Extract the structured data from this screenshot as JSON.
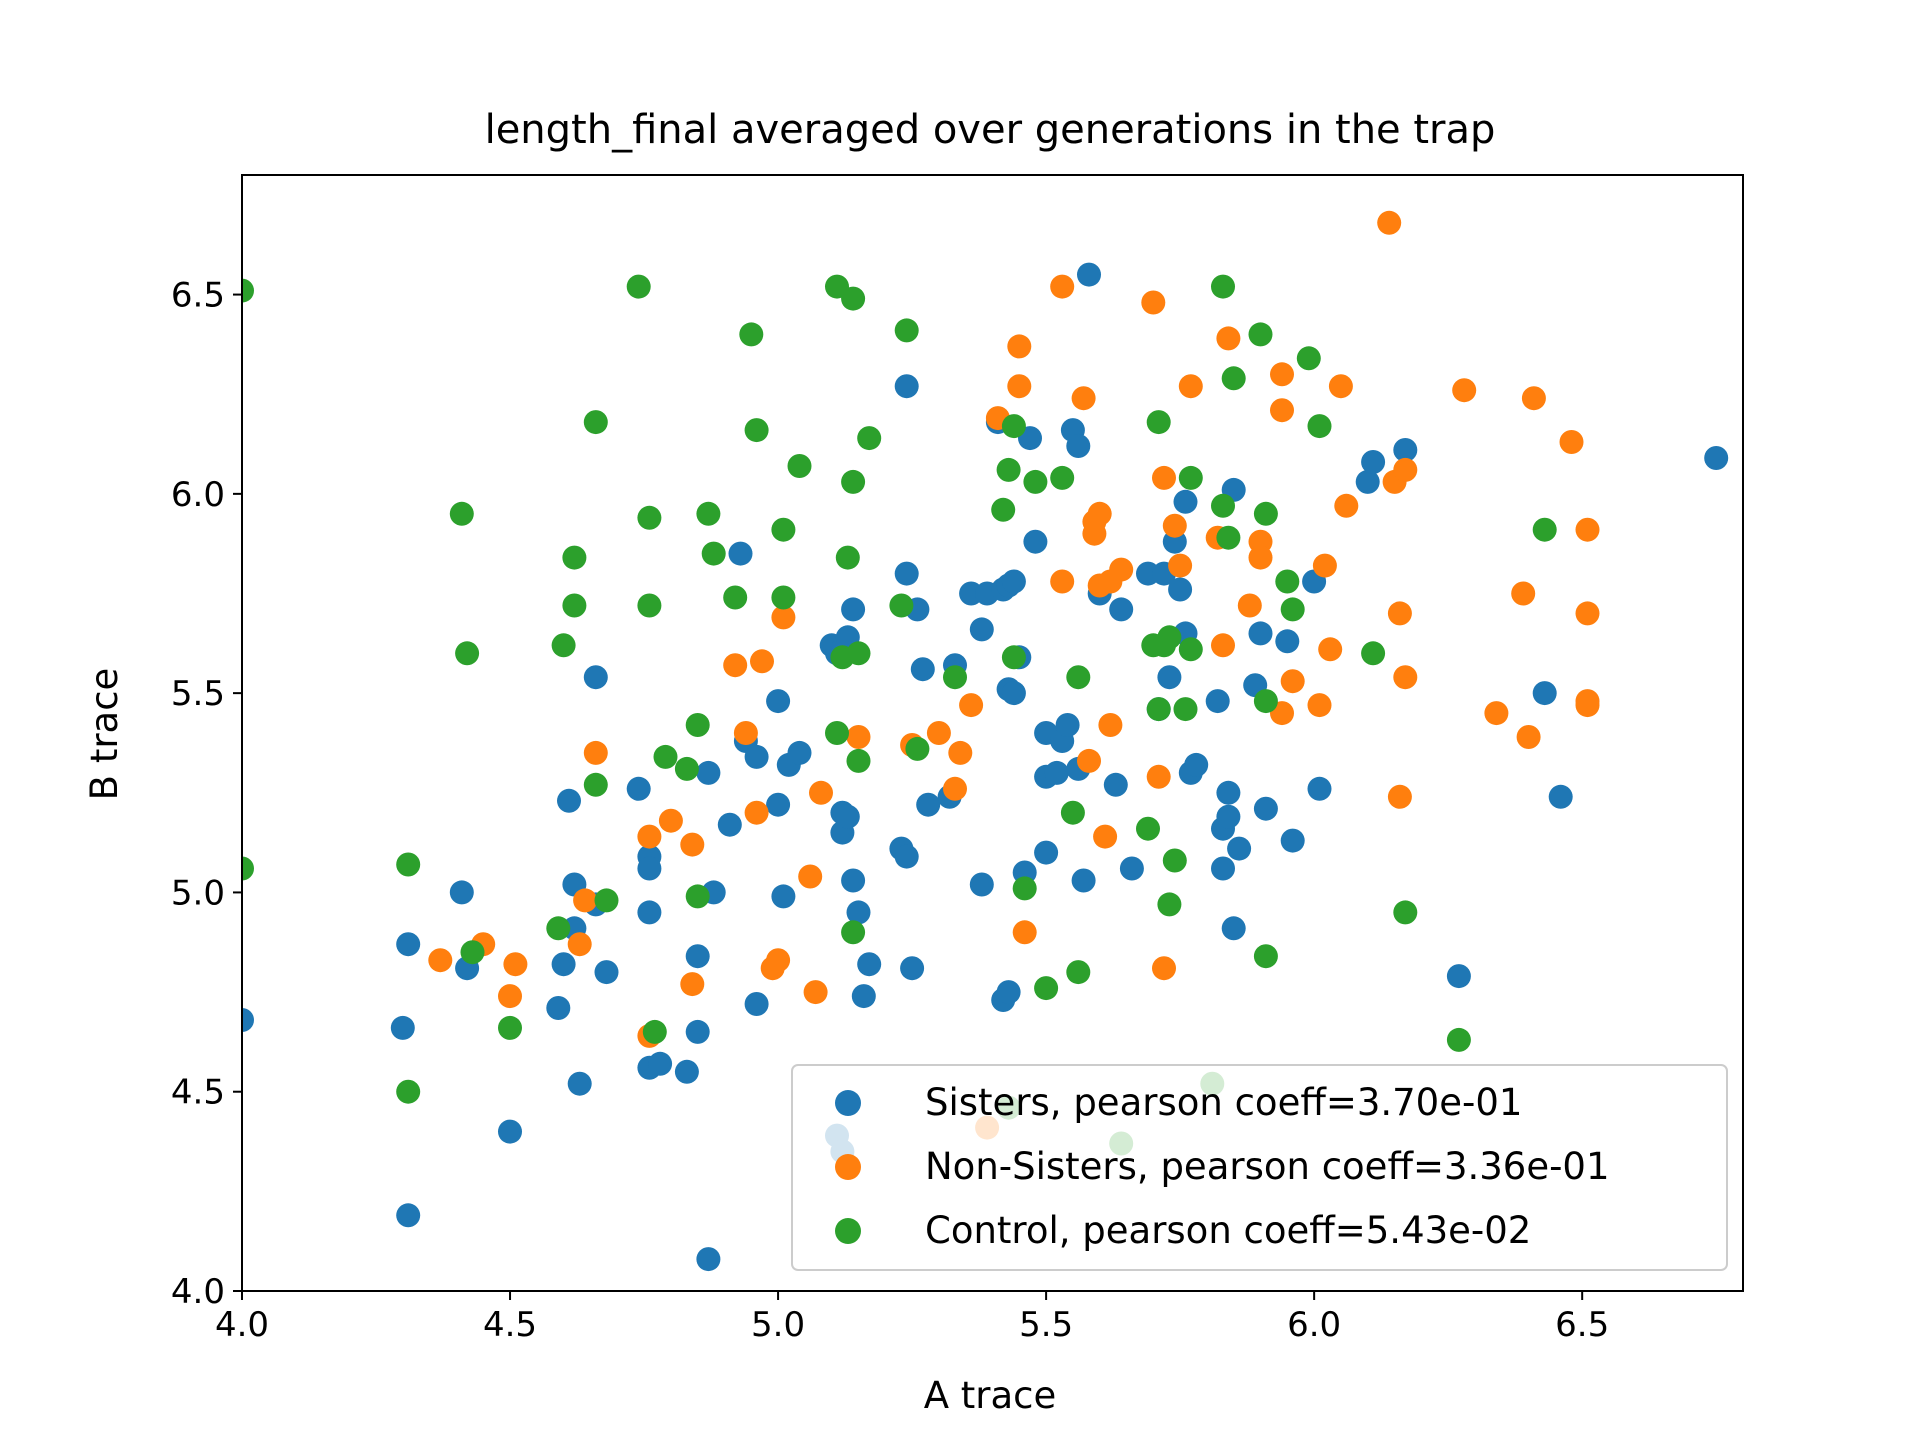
{
  "chart_data": {
    "type": "scatter",
    "title": "length_final averaged over generations in the trap",
    "xlabel": "A trace",
    "ylabel": "B trace",
    "xlim": [
      4.0,
      6.8
    ],
    "ylim": [
      4.0,
      6.8
    ],
    "xticks": [
      "4.0",
      "4.5",
      "5.0",
      "5.5",
      "6.0",
      "6.5"
    ],
    "yticks": [
      "4.0",
      "4.5",
      "5.0",
      "5.5",
      "6.0",
      "6.5"
    ],
    "grid": false,
    "legend_position": "lower-right",
    "series": [
      {
        "name": "Sisters, pearson coeff=3.70e-01",
        "color": "#1f77b4",
        "points": [
          [
            4.0,
            4.68
          ],
          [
            4.3,
            4.66
          ],
          [
            4.31,
            4.87
          ],
          [
            4.31,
            4.19
          ],
          [
            4.41,
            5.0
          ],
          [
            4.42,
            4.81
          ],
          [
            4.5,
            4.4
          ],
          [
            4.59,
            4.71
          ],
          [
            4.6,
            4.82
          ],
          [
            4.61,
            5.23
          ],
          [
            4.62,
            5.02
          ],
          [
            4.62,
            4.91
          ],
          [
            4.63,
            4.52
          ],
          [
            4.66,
            5.54
          ],
          [
            4.66,
            4.97
          ],
          [
            4.68,
            4.8
          ],
          [
            4.74,
            5.26
          ],
          [
            4.76,
            5.09
          ],
          [
            4.76,
            5.06
          ],
          [
            4.76,
            4.95
          ],
          [
            4.76,
            4.56
          ],
          [
            4.78,
            4.57
          ],
          [
            4.83,
            4.55
          ],
          [
            4.85,
            4.84
          ],
          [
            4.85,
            4.65
          ],
          [
            4.87,
            5.3
          ],
          [
            4.87,
            4.08
          ],
          [
            4.88,
            5.0
          ],
          [
            4.91,
            5.17
          ],
          [
            4.93,
            5.85
          ],
          [
            4.94,
            5.38
          ],
          [
            4.96,
            5.34
          ],
          [
            4.96,
            4.72
          ],
          [
            5.0,
            5.48
          ],
          [
            5.0,
            5.22
          ],
          [
            5.01,
            4.99
          ],
          [
            5.02,
            5.32
          ],
          [
            5.04,
            5.35
          ],
          [
            5.1,
            5.62
          ],
          [
            5.11,
            5.6
          ],
          [
            5.12,
            5.2
          ],
          [
            5.12,
            5.15
          ],
          [
            5.13,
            5.64
          ],
          [
            5.13,
            5.19
          ],
          [
            5.14,
            5.71
          ],
          [
            5.14,
            5.03
          ],
          [
            5.15,
            4.95
          ],
          [
            5.16,
            4.74
          ],
          [
            5.17,
            4.82
          ],
          [
            5.23,
            5.11
          ],
          [
            5.24,
            6.27
          ],
          [
            5.24,
            5.8
          ],
          [
            5.24,
            5.09
          ],
          [
            5.25,
            4.81
          ],
          [
            5.26,
            5.71
          ],
          [
            5.27,
            5.56
          ],
          [
            5.28,
            5.22
          ],
          [
            5.32,
            5.24
          ],
          [
            5.33,
            5.57
          ],
          [
            5.36,
            5.75
          ],
          [
            5.38,
            5.66
          ],
          [
            5.38,
            5.02
          ],
          [
            5.39,
            5.75
          ],
          [
            5.41,
            6.18
          ],
          [
            5.42,
            5.76
          ],
          [
            5.42,
            4.73
          ],
          [
            5.43,
            5.77
          ],
          [
            5.43,
            5.51
          ],
          [
            5.43,
            4.75
          ],
          [
            5.44,
            5.78
          ],
          [
            5.44,
            5.5
          ],
          [
            5.45,
            5.59
          ],
          [
            5.46,
            5.05
          ],
          [
            5.47,
            6.14
          ],
          [
            5.48,
            5.88
          ],
          [
            5.5,
            5.4
          ],
          [
            5.5,
            5.29
          ],
          [
            5.5,
            5.1
          ],
          [
            5.52,
            5.3
          ],
          [
            5.53,
            5.38
          ],
          [
            5.54,
            5.42
          ],
          [
            5.55,
            6.16
          ],
          [
            5.56,
            6.12
          ],
          [
            5.56,
            5.31
          ],
          [
            5.57,
            5.03
          ],
          [
            5.58,
            6.55
          ],
          [
            5.6,
            5.75
          ],
          [
            5.63,
            5.27
          ],
          [
            5.64,
            5.71
          ],
          [
            5.66,
            5.06
          ],
          [
            5.69,
            5.8
          ],
          [
            5.71,
            5.46
          ],
          [
            5.72,
            5.8
          ],
          [
            5.73,
            5.54
          ],
          [
            5.74,
            5.88
          ],
          [
            5.75,
            5.76
          ],
          [
            5.76,
            5.65
          ],
          [
            5.76,
            5.98
          ],
          [
            5.77,
            5.3
          ],
          [
            5.78,
            5.32
          ],
          [
            5.82,
            5.48
          ],
          [
            5.83,
            5.16
          ],
          [
            5.83,
            5.06
          ],
          [
            5.84,
            5.25
          ],
          [
            5.84,
            5.19
          ],
          [
            5.85,
            6.01
          ],
          [
            5.85,
            4.91
          ],
          [
            5.86,
            5.11
          ],
          [
            5.89,
            5.52
          ],
          [
            5.9,
            5.65
          ],
          [
            5.91,
            5.21
          ],
          [
            5.95,
            5.63
          ],
          [
            5.96,
            5.13
          ],
          [
            6.0,
            5.78
          ],
          [
            6.01,
            5.26
          ],
          [
            6.1,
            6.03
          ],
          [
            6.11,
            6.08
          ],
          [
            6.17,
            6.11
          ],
          [
            6.27,
            4.79
          ],
          [
            6.43,
            5.5
          ],
          [
            6.46,
            5.24
          ],
          [
            6.75,
            6.09
          ],
          [
            5.11,
            4.39
          ],
          [
            5.12,
            4.35
          ]
        ]
      },
      {
        "name": "Non-Sisters, pearson coeff=3.36e-01",
        "color": "#ff7f0e",
        "points": [
          [
            4.37,
            4.83
          ],
          [
            4.45,
            4.87
          ],
          [
            4.5,
            4.74
          ],
          [
            4.51,
            4.82
          ],
          [
            4.63,
            4.87
          ],
          [
            4.64,
            4.98
          ],
          [
            4.66,
            5.35
          ],
          [
            4.76,
            5.14
          ],
          [
            4.76,
            4.64
          ],
          [
            4.8,
            5.18
          ],
          [
            4.84,
            5.12
          ],
          [
            4.84,
            4.77
          ],
          [
            4.92,
            5.57
          ],
          [
            4.94,
            5.4
          ],
          [
            4.96,
            5.2
          ],
          [
            4.97,
            5.58
          ],
          [
            4.99,
            4.81
          ],
          [
            5.0,
            4.83
          ],
          [
            5.01,
            5.69
          ],
          [
            5.06,
            5.04
          ],
          [
            5.07,
            4.75
          ],
          [
            5.08,
            5.25
          ],
          [
            5.15,
            5.39
          ],
          [
            5.25,
            5.37
          ],
          [
            5.3,
            5.4
          ],
          [
            5.33,
            5.26
          ],
          [
            5.34,
            5.35
          ],
          [
            5.36,
            5.47
          ],
          [
            5.39,
            4.41
          ],
          [
            5.41,
            6.19
          ],
          [
            5.45,
            6.37
          ],
          [
            5.45,
            6.27
          ],
          [
            5.46,
            4.9
          ],
          [
            5.53,
            6.52
          ],
          [
            5.53,
            5.78
          ],
          [
            5.57,
            6.24
          ],
          [
            5.58,
            5.33
          ],
          [
            5.59,
            5.93
          ],
          [
            5.59,
            5.9
          ],
          [
            5.6,
            5.95
          ],
          [
            5.6,
            5.77
          ],
          [
            5.61,
            5.14
          ],
          [
            5.62,
            5.78
          ],
          [
            5.62,
            5.42
          ],
          [
            5.64,
            5.81
          ],
          [
            5.7,
            6.48
          ],
          [
            5.71,
            5.29
          ],
          [
            5.72,
            6.04
          ],
          [
            5.72,
            4.81
          ],
          [
            5.74,
            5.92
          ],
          [
            5.75,
            5.82
          ],
          [
            5.77,
            6.27
          ],
          [
            5.82,
            5.89
          ],
          [
            5.83,
            5.62
          ],
          [
            5.84,
            6.39
          ],
          [
            5.88,
            5.72
          ],
          [
            5.9,
            5.88
          ],
          [
            5.9,
            5.84
          ],
          [
            5.94,
            6.3
          ],
          [
            5.94,
            6.21
          ],
          [
            5.94,
            5.45
          ],
          [
            5.96,
            5.53
          ],
          [
            6.01,
            5.47
          ],
          [
            6.02,
            5.82
          ],
          [
            6.03,
            5.61
          ],
          [
            6.05,
            6.27
          ],
          [
            6.06,
            5.97
          ],
          [
            6.14,
            6.68
          ],
          [
            6.15,
            6.03
          ],
          [
            6.16,
            5.7
          ],
          [
            6.16,
            5.24
          ],
          [
            6.17,
            6.06
          ],
          [
            6.17,
            5.54
          ],
          [
            6.28,
            6.26
          ],
          [
            6.34,
            5.45
          ],
          [
            6.39,
            5.75
          ],
          [
            6.4,
            5.39
          ],
          [
            6.41,
            6.24
          ],
          [
            6.48,
            6.13
          ],
          [
            6.51,
            5.91
          ],
          [
            6.51,
            5.7
          ],
          [
            6.51,
            5.48
          ],
          [
            6.51,
            5.47
          ]
        ]
      },
      {
        "name": "Control, pearson coeff=5.43e-02",
        "color": "#2ca02c",
        "points": [
          [
            4.0,
            6.51
          ],
          [
            4.0,
            5.06
          ],
          [
            4.31,
            5.07
          ],
          [
            4.31,
            4.5
          ],
          [
            4.41,
            5.95
          ],
          [
            4.42,
            5.6
          ],
          [
            4.43,
            4.85
          ],
          [
            4.5,
            4.66
          ],
          [
            4.59,
            4.91
          ],
          [
            4.6,
            5.62
          ],
          [
            4.62,
            5.84
          ],
          [
            4.62,
            5.72
          ],
          [
            4.66,
            6.18
          ],
          [
            4.66,
            5.27
          ],
          [
            4.68,
            4.98
          ],
          [
            4.74,
            6.52
          ],
          [
            4.76,
            5.94
          ],
          [
            4.76,
            5.72
          ],
          [
            4.77,
            4.65
          ],
          [
            4.79,
            5.34
          ],
          [
            4.83,
            5.31
          ],
          [
            4.85,
            5.42
          ],
          [
            4.85,
            4.99
          ],
          [
            4.87,
            5.95
          ],
          [
            4.88,
            5.85
          ],
          [
            4.92,
            5.74
          ],
          [
            4.95,
            6.4
          ],
          [
            4.96,
            6.16
          ],
          [
            5.01,
            5.91
          ],
          [
            5.01,
            5.74
          ],
          [
            5.04,
            6.07
          ],
          [
            5.11,
            6.52
          ],
          [
            5.11,
            5.4
          ],
          [
            5.12,
            5.59
          ],
          [
            5.13,
            5.84
          ],
          [
            5.14,
            6.49
          ],
          [
            5.14,
            6.03
          ],
          [
            5.14,
            4.9
          ],
          [
            5.15,
            5.33
          ],
          [
            5.15,
            5.6
          ],
          [
            5.17,
            6.14
          ],
          [
            5.23,
            5.72
          ],
          [
            5.24,
            6.41
          ],
          [
            5.26,
            5.36
          ],
          [
            5.33,
            5.54
          ],
          [
            5.42,
            5.96
          ],
          [
            5.43,
            6.06
          ],
          [
            5.43,
            4.46
          ],
          [
            5.44,
            5.59
          ],
          [
            5.44,
            6.17
          ],
          [
            5.46,
            5.01
          ],
          [
            5.48,
            6.03
          ],
          [
            5.5,
            4.76
          ],
          [
            5.53,
            6.04
          ],
          [
            5.55,
            5.2
          ],
          [
            5.56,
            4.8
          ],
          [
            5.56,
            5.54
          ],
          [
            5.64,
            4.37
          ],
          [
            5.69,
            5.16
          ],
          [
            5.7,
            5.62
          ],
          [
            5.71,
            6.18
          ],
          [
            5.71,
            5.46
          ],
          [
            5.72,
            5.62
          ],
          [
            5.73,
            4.97
          ],
          [
            5.73,
            5.64
          ],
          [
            5.74,
            5.08
          ],
          [
            5.76,
            5.46
          ],
          [
            5.77,
            6.04
          ],
          [
            5.77,
            5.61
          ],
          [
            5.81,
            4.52
          ],
          [
            5.83,
            6.52
          ],
          [
            5.83,
            5.97
          ],
          [
            5.84,
            5.89
          ],
          [
            5.85,
            6.29
          ],
          [
            5.9,
            6.4
          ],
          [
            5.91,
            5.95
          ],
          [
            5.91,
            4.84
          ],
          [
            5.91,
            5.48
          ],
          [
            5.95,
            5.78
          ],
          [
            5.96,
            5.71
          ],
          [
            5.99,
            6.34
          ],
          [
            6.01,
            6.17
          ],
          [
            6.11,
            5.6
          ],
          [
            6.17,
            4.95
          ],
          [
            6.27,
            4.63
          ],
          [
            6.43,
            5.91
          ]
        ]
      }
    ]
  }
}
